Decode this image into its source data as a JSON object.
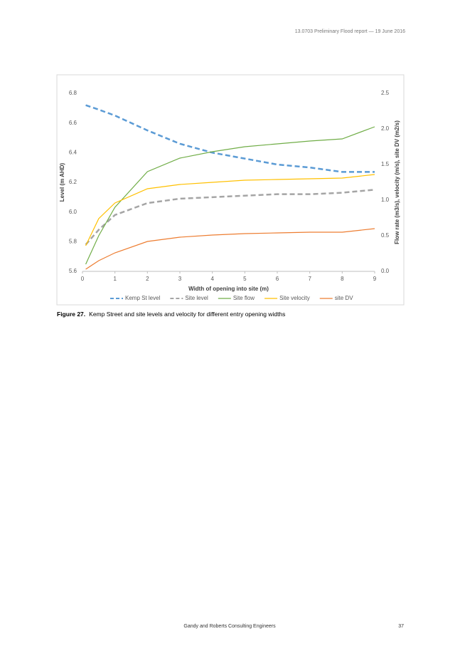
{
  "header": {
    "text": "13.0703 Preliminary Flood report — 19 June 2016"
  },
  "chart_data": {
    "type": "line",
    "x_label": "Width of opening into site (m)",
    "y_label": "Level (m AHD)",
    "y2_label": "Flow rate (m3/s), velocity (m/s), site DV (m2/s)",
    "x": [
      0.1,
      0.5,
      1,
      2,
      3,
      4,
      5,
      6,
      7,
      8,
      9
    ],
    "xlim": [
      0,
      9
    ],
    "xticks": [
      0,
      1,
      2,
      3,
      4,
      5,
      6,
      7,
      8,
      9
    ],
    "ylim": [
      5.6,
      6.8
    ],
    "yticks": [
      5.6,
      5.8,
      {
        "value": 6,
        "label": "6.0"
      },
      6.2,
      6.4,
      6.6,
      6.8
    ],
    "y2lim": [
      0,
      2.5
    ],
    "y2ticks": [
      {
        "value": 0,
        "label": "0.0"
      },
      0.5,
      {
        "value": 1,
        "label": "1.0"
      },
      1.5,
      {
        "value": 2,
        "label": "2.0"
      },
      2.5
    ],
    "grid": false,
    "series": [
      {
        "name": "Kemp St level",
        "color": "#5b9bd5",
        "dashed": true,
        "values": [
          6.72,
          6.69,
          6.65,
          6.55,
          6.46,
          6.4,
          6.36,
          6.32,
          6.3,
          6.27,
          6.27
        ]
      },
      {
        "name": "Site level",
        "color": "#a5a5a5",
        "dashed": true,
        "values": [
          5.78,
          5.88,
          5.98,
          6.06,
          6.09,
          6.1,
          6.11,
          6.12,
          6.12,
          6.13,
          6.15
        ]
      },
      {
        "name": "Site flow",
        "color": "#70ad47",
        "axis": "y2",
        "values": [
          0.1,
          0.5,
          0.9,
          1.4,
          1.59,
          1.68,
          1.75,
          1.79,
          1.83,
          1.86,
          2.03
        ]
      },
      {
        "name": "Site velocity",
        "color": "#ffc000",
        "axis": "y2",
        "values": [
          0.36,
          0.74,
          0.96,
          1.16,
          1.22,
          1.25,
          1.28,
          1.29,
          1.3,
          1.31,
          1.36
        ]
      },
      {
        "name": "site DV",
        "color": "#ed7d31",
        "axis": "y2",
        "values": [
          0.03,
          0.15,
          0.26,
          0.42,
          0.48,
          0.51,
          0.53,
          0.54,
          0.55,
          0.55,
          0.6
        ]
      }
    ]
  },
  "caption": {
    "label": "Figure 27.",
    "text": "Kemp Street and site levels and velocity for different entry opening widths"
  },
  "footer": {
    "text": "Gandy and Roberts Consulting Engineers",
    "page": "37"
  }
}
